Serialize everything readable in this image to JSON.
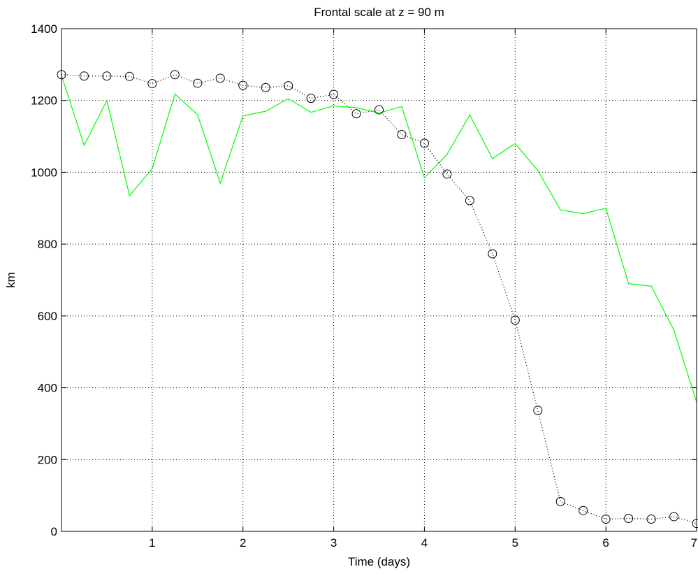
{
  "chart_data": {
    "type": "line",
    "title": "Frontal scale at z = 90 m",
    "xlabel": "Time (days)",
    "ylabel": "km",
    "xlim": [
      0,
      7
    ],
    "ylim": [
      0,
      1400
    ],
    "xticks": [
      1,
      2,
      3,
      4,
      5,
      6,
      7
    ],
    "yticks": [
      0,
      200,
      400,
      600,
      800,
      1000,
      1200,
      1400
    ],
    "grid": true,
    "series": [
      {
        "color": "#00ff00",
        "line_style": "solid",
        "marker": "none",
        "x": [
          0,
          0.25,
          0.5,
          0.75,
          1.0,
          1.25,
          1.5,
          1.75,
          2.0,
          2.25,
          2.5,
          2.75,
          3.0,
          3.25,
          3.5,
          3.75,
          4.0,
          4.25,
          4.5,
          4.75,
          5.0,
          5.25,
          5.5,
          5.75,
          6.0,
          6.25,
          6.5,
          6.75,
          7.0
        ],
        "values": [
          1270,
          1075,
          1200,
          935,
          1010,
          1218,
          1160,
          970,
          1157,
          1170,
          1205,
          1167,
          1185,
          1180,
          1165,
          1183,
          985,
          1050,
          1160,
          1038,
          1080,
          1005,
          895,
          885,
          900,
          690,
          683,
          560,
          360
        ]
      },
      {
        "color": "#000000",
        "line_style": "dotted",
        "marker": "circle",
        "x": [
          0,
          0.25,
          0.5,
          0.75,
          1.0,
          1.25,
          1.5,
          1.75,
          2.0,
          2.25,
          2.5,
          2.75,
          3.0,
          3.25,
          3.5,
          3.75,
          4.0,
          4.25,
          4.5,
          4.75,
          5.0,
          5.25,
          5.5,
          5.75,
          6.0,
          6.25,
          6.5,
          6.75,
          7.0
        ],
        "values": [
          1272,
          1268,
          1268,
          1267,
          1247,
          1272,
          1248,
          1262,
          1242,
          1236,
          1241,
          1206,
          1217,
          1163,
          1174,
          1105,
          1081,
          995,
          921,
          773,
          588,
          337,
          83,
          58,
          34,
          36,
          34,
          41,
          22
        ]
      }
    ]
  }
}
